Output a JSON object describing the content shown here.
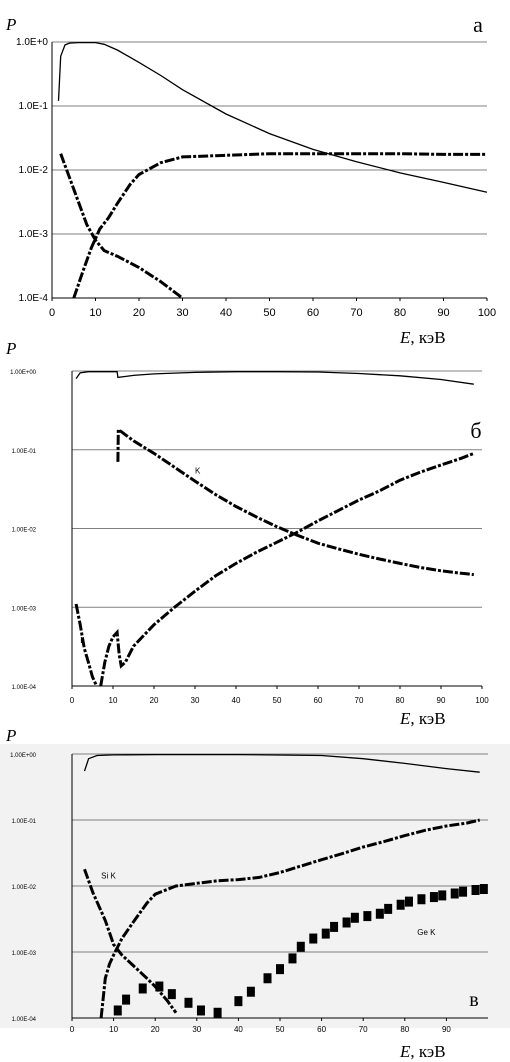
{
  "chart_data": [
    {
      "type": "line",
      "panel_letter": "а",
      "ylabel": "P",
      "xlabel": "E, кэВ",
      "y_scale": "log",
      "ylim": [
        0.0001,
        1
      ],
      "xlim": [
        0,
        100
      ],
      "grid": "horizontal",
      "y_tick_labels": [
        "1.0E+0",
        "1.0E-1",
        "1.0E-2",
        "1.0E-3",
        "1.0E-4"
      ],
      "y_tick_values": [
        1,
        0.1,
        0.01,
        0.001,
        0.0001
      ],
      "x_tick_labels": [
        "0",
        "10",
        "20",
        "30",
        "40",
        "50",
        "60",
        "70",
        "80",
        "90",
        "100"
      ],
      "x_tick_values": [
        0,
        10,
        20,
        30,
        40,
        50,
        60,
        70,
        80,
        90,
        100
      ],
      "series": [
        {
          "style": "solid",
          "x": [
            1.5,
            2,
            3,
            4,
            6,
            8,
            10,
            12,
            15,
            20,
            25,
            30,
            40,
            50,
            60,
            70,
            80,
            90,
            100
          ],
          "y": [
            0.12,
            0.6,
            0.9,
            0.96,
            0.98,
            0.98,
            0.98,
            0.92,
            0.75,
            0.48,
            0.3,
            0.18,
            0.075,
            0.037,
            0.021,
            0.0135,
            0.009,
            0.0064,
            0.0045
          ]
        },
        {
          "style": "dashed",
          "x": [
            2,
            5,
            8,
            10,
            12,
            15,
            20,
            25,
            30
          ],
          "y": [
            0.018,
            0.005,
            0.0014,
            0.0008,
            0.00055,
            0.00045,
            0.0003,
            0.00018,
            0.0001
          ]
        },
        {
          "style": "dashed",
          "x": [
            5,
            7,
            9,
            11,
            13,
            15,
            18,
            20,
            25,
            30,
            40,
            50,
            60,
            70,
            80,
            90,
            100
          ],
          "y": [
            0.0001,
            0.00025,
            0.0006,
            0.0012,
            0.0018,
            0.003,
            0.006,
            0.0085,
            0.013,
            0.016,
            0.017,
            0.018,
            0.018,
            0.018,
            0.018,
            0.0175,
            0.0175
          ]
        }
      ]
    },
    {
      "type": "line",
      "panel_letter": "б",
      "ylabel": "P",
      "xlabel": "E, кэВ",
      "y_scale": "log",
      "ylim": [
        0.0001,
        1
      ],
      "xlim": [
        0,
        100
      ],
      "grid": "horizontal",
      "y_tick_labels": [
        "1.00E+00",
        "1.00E-01",
        "1.00E-02",
        "1.00E-03",
        "1.00E-04"
      ],
      "y_tick_values": [
        1,
        0.1,
        0.01,
        0.001,
        0.0001
      ],
      "x_tick_labels": [
        "0",
        "10",
        "20",
        "30",
        "40",
        "50",
        "60",
        "70",
        "80",
        "90",
        "100"
      ],
      "x_tick_values": [
        0,
        10,
        20,
        30,
        40,
        50,
        60,
        70,
        80,
        90,
        100
      ],
      "annotations": [
        {
          "text": "K",
          "x": 30,
          "y": 0.05
        },
        {
          "text": "L",
          "x": 2,
          "y": 0.00035
        }
      ],
      "series": [
        {
          "style": "solid",
          "x": [
            1,
            2,
            4,
            8,
            11,
            11.2,
            15,
            20,
            30,
            40,
            50,
            60,
            70,
            80,
            90,
            98
          ],
          "y": [
            0.8,
            0.95,
            0.98,
            0.98,
            0.98,
            0.83,
            0.88,
            0.92,
            0.96,
            0.98,
            0.98,
            0.97,
            0.93,
            0.87,
            0.78,
            0.68
          ]
        },
        {
          "style": "dashed",
          "x": [
            11.2,
            11.3,
            12,
            15,
            20,
            25,
            30,
            35,
            40,
            45,
            50,
            55,
            60,
            65,
            70,
            75,
            80,
            85,
            90,
            95,
            98
          ],
          "y": [
            0.07,
            0.18,
            0.17,
            0.13,
            0.09,
            0.06,
            0.04,
            0.027,
            0.019,
            0.014,
            0.0105,
            0.0082,
            0.0065,
            0.0055,
            0.0047,
            0.0041,
            0.0036,
            0.0032,
            0.0029,
            0.0027,
            0.0026
          ]
        },
        {
          "style": "dashed",
          "x": [
            1,
            2,
            3,
            4,
            5,
            6
          ],
          "y": [
            0.0011,
            0.0006,
            0.0003,
            0.0002,
            0.00013,
            0.0001
          ]
        },
        {
          "style": "dashed",
          "x": [
            7,
            8,
            9,
            10,
            11,
            11.5,
            12,
            13,
            15,
            20,
            25,
            30,
            35,
            40,
            45,
            50,
            55,
            60,
            65,
            70,
            75,
            80,
            85,
            90,
            95,
            98
          ],
          "y": [
            0.0001,
            0.0002,
            0.00032,
            0.00042,
            0.00048,
            0.00025,
            0.00018,
            0.0002,
            0.00032,
            0.0006,
            0.001,
            0.0016,
            0.0025,
            0.0036,
            0.005,
            0.0067,
            0.009,
            0.0125,
            0.017,
            0.023,
            0.03,
            0.041,
            0.052,
            0.064,
            0.078,
            0.09
          ]
        }
      ]
    },
    {
      "type": "line",
      "panel_letter": "в",
      "ylabel": "P",
      "xlabel": "E, кэВ",
      "y_scale": "log",
      "ylim": [
        0.0001,
        1
      ],
      "xlim": [
        0,
        100
      ],
      "grid": "horizontal",
      "y_tick_labels": [
        "1.00E+00",
        "1.00E-01",
        "1.00E-02",
        "1.00E-03",
        "1.00E-04"
      ],
      "y_tick_values": [
        1,
        0.1,
        0.01,
        0.001,
        0.0001
      ],
      "x_tick_labels": [
        "0",
        "10",
        "20",
        "30",
        "40",
        "50",
        "60",
        "70",
        "80",
        "90"
      ],
      "x_tick_values": [
        0,
        10,
        20,
        30,
        40,
        50,
        60,
        70,
        80,
        90
      ],
      "annotations": [
        {
          "text": "Si K",
          "x": 7,
          "y": 0.013
        },
        {
          "text": "Ge K",
          "x": 83,
          "y": 0.0018
        }
      ],
      "series": [
        {
          "style": "solid",
          "x": [
            3,
            4,
            6,
            10,
            20,
            40,
            60,
            70,
            80,
            90,
            98
          ],
          "y": [
            0.55,
            0.85,
            0.95,
            0.97,
            0.98,
            0.98,
            0.95,
            0.85,
            0.72,
            0.6,
            0.53
          ]
        },
        {
          "style": "dashed",
          "x": [
            3,
            5,
            8,
            10,
            12,
            15,
            18,
            20,
            23,
            25
          ],
          "y": [
            0.018,
            0.008,
            0.003,
            0.0013,
            0.0009,
            0.0006,
            0.0004,
            0.0003,
            0.00018,
            0.00012
          ]
        },
        {
          "style": "dashed",
          "x": [
            7,
            8,
            9,
            10,
            12,
            15,
            18,
            20,
            25,
            30,
            35,
            40,
            45,
            50,
            55,
            60,
            65,
            70,
            75,
            80,
            85,
            90,
            95,
            98
          ],
          "y": [
            0.0001,
            0.0004,
            0.00065,
            0.0009,
            0.0016,
            0.003,
            0.0055,
            0.0075,
            0.01,
            0.011,
            0.012,
            0.0125,
            0.0135,
            0.016,
            0.02,
            0.025,
            0.031,
            0.039,
            0.047,
            0.058,
            0.07,
            0.081,
            0.09,
            0.1
          ]
        },
        {
          "style": "squares",
          "x": [
            11,
            13,
            17,
            21,
            24,
            28,
            31,
            35,
            40,
            43,
            47,
            50,
            53,
            55,
            58,
            61,
            63,
            66,
            68,
            71,
            74,
            76,
            79,
            81,
            84,
            87,
            89,
            92,
            94,
            97,
            99
          ],
          "y": [
            0.00013,
            0.00019,
            0.00028,
            0.0003,
            0.00023,
            0.00017,
            0.00013,
            0.00012,
            0.00018,
            0.00025,
            0.0004,
            0.00055,
            0.0008,
            0.0012,
            0.0016,
            0.0019,
            0.0024,
            0.0028,
            0.0033,
            0.0035,
            0.0038,
            0.0045,
            0.0052,
            0.0058,
            0.0063,
            0.0068,
            0.0072,
            0.0077,
            0.0082,
            0.0087,
            0.009
          ]
        }
      ]
    }
  ]
}
